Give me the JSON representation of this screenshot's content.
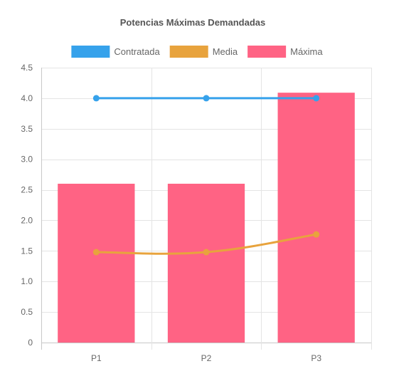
{
  "chart_data": {
    "type": "bar",
    "title": "Potencias Máximas Demandadas",
    "categories": [
      "P1",
      "P2",
      "P3"
    ],
    "ylim": [
      0,
      4.5
    ],
    "yticks": [
      0,
      0.5,
      1.0,
      1.5,
      2.0,
      2.5,
      3.0,
      3.5,
      4.0,
      4.5
    ],
    "ytick_labels": [
      "0",
      "0.5",
      "1.0",
      "1.5",
      "2.0",
      "2.5",
      "3.0",
      "3.5",
      "4.0",
      "4.5"
    ],
    "grid": true,
    "legend_position": "top",
    "series": [
      {
        "name": "Contratada",
        "type": "line",
        "color": "#36a2eb",
        "values": [
          4.0,
          4.0,
          4.0
        ]
      },
      {
        "name": "Media",
        "type": "line",
        "smooth": true,
        "color": "#e8a33d",
        "values": [
          1.48,
          1.48,
          1.77
        ]
      },
      {
        "name": "Máxima",
        "type": "bar",
        "color": "#ff6384",
        "values": [
          2.6,
          2.6,
          4.09
        ]
      }
    ]
  }
}
